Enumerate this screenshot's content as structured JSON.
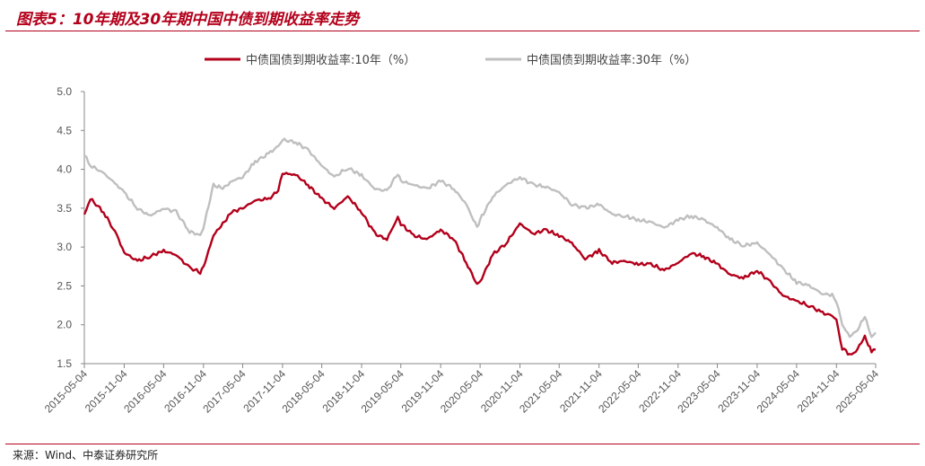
{
  "header": {
    "title": "图表5：10年期及30年期中国中债到期收益率走势"
  },
  "footer": {
    "source": "来源：Wind、中泰证券研究所"
  },
  "chart_data": {
    "type": "line",
    "title": "图表5：10年期及30年期中国中债到期收益率走势",
    "xlabel": "",
    "ylabel": "",
    "ylim": [
      1.5,
      5.0
    ],
    "yticks": [
      "1.5",
      "2.0",
      "2.5",
      "3.0",
      "3.5",
      "4.0",
      "4.5",
      "5.0"
    ],
    "xticks": [
      "2015-05-04",
      "2015-11-04",
      "2016-05-04",
      "2016-11-04",
      "2017-05-04",
      "2017-11-04",
      "2018-05-04",
      "2018-11-04",
      "2019-05-04",
      "2019-11-04",
      "2020-05-04",
      "2020-11-04",
      "2021-05-04",
      "2021-11-04",
      "2022-05-04",
      "2022-11-04",
      "2023-05-04",
      "2023-11-04",
      "2024-05-04",
      "2024-11-04",
      "2025-05-04"
    ],
    "grid": false,
    "legend": "top-center",
    "series": [
      {
        "name": "中债国债到期收益率:10年（%）",
        "color": "#b3001b",
        "x": [
          "2015-05-04",
          "2015-06-01",
          "2015-08-01",
          "2015-10-01",
          "2015-11-04",
          "2016-01-04",
          "2016-03-01",
          "2016-05-04",
          "2016-07-01",
          "2016-09-01",
          "2016-10-20",
          "2016-11-04",
          "2016-12-20",
          "2017-02-01",
          "2017-03-15",
          "2017-05-04",
          "2017-07-01",
          "2017-09-01",
          "2017-10-15",
          "2017-11-04",
          "2018-01-04",
          "2018-03-01",
          "2018-05-04",
          "2018-07-01",
          "2018-09-01",
          "2018-11-04",
          "2019-01-04",
          "2019-03-01",
          "2019-04-20",
          "2019-05-04",
          "2019-07-01",
          "2019-09-01",
          "2019-11-04",
          "2020-01-04",
          "2020-03-01",
          "2020-04-20",
          "2020-05-04",
          "2020-07-01",
          "2020-09-01",
          "2020-11-04",
          "2021-01-04",
          "2021-03-01",
          "2021-05-04",
          "2021-07-01",
          "2021-09-01",
          "2021-11-04",
          "2022-01-04",
          "2022-03-01",
          "2022-05-04",
          "2022-07-01",
          "2022-09-01",
          "2022-11-04",
          "2023-01-04",
          "2023-03-01",
          "2023-05-04",
          "2023-07-01",
          "2023-09-01",
          "2023-11-04",
          "2024-01-04",
          "2024-03-01",
          "2024-05-04",
          "2024-07-01",
          "2024-09-01",
          "2024-10-15",
          "2024-11-04",
          "2024-12-01",
          "2025-01-04",
          "2025-02-01",
          "2025-03-15",
          "2025-04-15",
          "2025-05-04"
        ],
        "values": [
          3.42,
          3.62,
          3.45,
          3.15,
          2.93,
          2.82,
          2.88,
          2.95,
          2.9,
          2.73,
          2.68,
          2.74,
          3.15,
          3.3,
          3.45,
          3.5,
          3.6,
          3.62,
          3.72,
          3.95,
          3.93,
          3.8,
          3.62,
          3.5,
          3.65,
          3.45,
          3.17,
          3.1,
          3.38,
          3.3,
          3.15,
          3.1,
          3.22,
          3.1,
          2.8,
          2.52,
          2.55,
          2.9,
          3.05,
          3.3,
          3.17,
          3.22,
          3.15,
          3.05,
          2.85,
          2.95,
          2.8,
          2.82,
          2.78,
          2.78,
          2.7,
          2.8,
          2.92,
          2.88,
          2.78,
          2.65,
          2.6,
          2.7,
          2.55,
          2.38,
          2.3,
          2.25,
          2.15,
          2.12,
          2.05,
          1.7,
          1.62,
          1.65,
          1.85,
          1.65,
          1.68
        ]
      },
      {
        "name": "中债国债到期收益率:30年（%）",
        "color": "#bfbfbf",
        "x": [
          "2015-05-04",
          "2015-06-01",
          "2015-08-01",
          "2015-10-01",
          "2015-11-04",
          "2016-01-04",
          "2016-03-01",
          "2016-05-04",
          "2016-07-01",
          "2016-09-01",
          "2016-10-20",
          "2016-11-04",
          "2016-12-20",
          "2017-02-01",
          "2017-03-15",
          "2017-05-04",
          "2017-07-01",
          "2017-09-01",
          "2017-10-15",
          "2017-11-04",
          "2018-01-04",
          "2018-03-01",
          "2018-05-04",
          "2018-07-01",
          "2018-09-01",
          "2018-11-04",
          "2019-01-04",
          "2019-03-01",
          "2019-04-20",
          "2019-05-04",
          "2019-07-01",
          "2019-09-01",
          "2019-11-04",
          "2020-01-04",
          "2020-03-01",
          "2020-04-20",
          "2020-05-04",
          "2020-07-01",
          "2020-09-01",
          "2020-11-04",
          "2021-01-04",
          "2021-03-01",
          "2021-05-04",
          "2021-07-01",
          "2021-09-01",
          "2021-11-04",
          "2022-01-04",
          "2022-03-01",
          "2022-05-04",
          "2022-07-01",
          "2022-09-01",
          "2022-11-04",
          "2023-01-04",
          "2023-03-01",
          "2023-05-04",
          "2023-07-01",
          "2023-09-01",
          "2023-11-04",
          "2024-01-04",
          "2024-03-01",
          "2024-05-04",
          "2024-07-01",
          "2024-09-01",
          "2024-10-15",
          "2024-11-04",
          "2024-12-01",
          "2025-01-04",
          "2025-02-01",
          "2025-03-15",
          "2025-04-15",
          "2025-05-04"
        ],
        "values": [
          4.18,
          4.05,
          3.95,
          3.8,
          3.7,
          3.5,
          3.4,
          3.5,
          3.45,
          3.2,
          3.15,
          3.25,
          3.8,
          3.75,
          3.85,
          3.9,
          4.1,
          4.2,
          4.3,
          4.38,
          4.35,
          4.25,
          4.05,
          3.9,
          4.02,
          3.92,
          3.75,
          3.72,
          3.95,
          3.85,
          3.8,
          3.75,
          3.85,
          3.75,
          3.55,
          3.25,
          3.35,
          3.65,
          3.8,
          3.9,
          3.8,
          3.78,
          3.7,
          3.55,
          3.5,
          3.55,
          3.42,
          3.4,
          3.35,
          3.32,
          3.25,
          3.35,
          3.4,
          3.35,
          3.25,
          3.1,
          3.02,
          3.05,
          2.9,
          2.72,
          2.55,
          2.5,
          2.4,
          2.38,
          2.3,
          2.0,
          1.85,
          1.9,
          2.1,
          1.85,
          1.9
        ]
      }
    ]
  }
}
